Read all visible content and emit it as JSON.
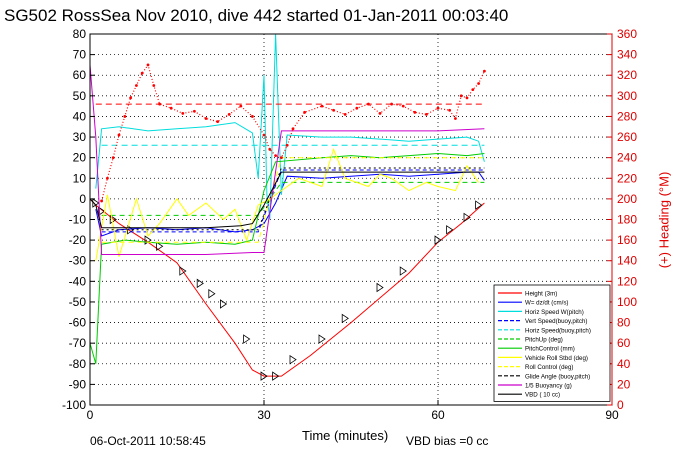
{
  "title": "SG502 RossSea Nov 2010, dive 442 started 01-Jan-2011 00:03:40",
  "xlabel": "Time (minutes)",
  "y2label": "(+) Heading (°M)",
  "timestamp": "06-Oct-2011 10:58:45",
  "vbd_bias": "VBD bias =0 cc",
  "chart_data": {
    "type": "line",
    "xlim": [
      0,
      90
    ],
    "ylim": [
      -100,
      80
    ],
    "y2lim": [
      0,
      360
    ],
    "xticks": [
      0,
      30,
      60,
      90
    ],
    "yticks": [
      -100,
      -90,
      -80,
      -70,
      -60,
      -50,
      -40,
      -30,
      -20,
      -10,
      0,
      10,
      20,
      30,
      40,
      50,
      60,
      70,
      80
    ],
    "y2ticks": [
      0,
      20,
      40,
      60,
      80,
      100,
      120,
      140,
      160,
      180,
      200,
      220,
      240,
      260,
      280,
      300,
      320,
      340,
      360
    ],
    "grid": true,
    "legend_position": "bottom-right",
    "legend": [
      {
        "label": "Height (3m)",
        "color": "#ff0000",
        "style": "solid"
      },
      {
        "label": "W= dz/dt (cm/s)",
        "color": "#0000ff",
        "style": "solid"
      },
      {
        "label": "Horiz Speed W(pitch)",
        "color": "#00dddd",
        "style": "solid"
      },
      {
        "label": "Vert Speed(buoy,pitch)",
        "color": "#0000ff",
        "style": "dashed"
      },
      {
        "label": "Horiz Speed(buoy,pitch)",
        "color": "#00dddd",
        "style": "dashed"
      },
      {
        "label": "PitchUp (deg)",
        "color": "#00cc00",
        "style": "dashed"
      },
      {
        "label": "PitchControl (mm)",
        "color": "#00cc00",
        "style": "solid"
      },
      {
        "label": "Vehicle Roll Stbd (deg)",
        "color": "#ffff00",
        "style": "solid"
      },
      {
        "label": "Roll Control (deg)",
        "color": "#ffff00",
        "style": "dashed"
      },
      {
        "label": "Glide Angle (buoy,pitch)",
        "color": "#000000",
        "style": "dashed"
      },
      {
        "label": "1/5 Buoyancy (g)",
        "color": "#cc00cc",
        "style": "solid"
      },
      {
        "label": "VBD ( 10 cc)",
        "color": "#000000",
        "style": "solid"
      }
    ],
    "series": [
      {
        "name": "Height (3m)",
        "color": "#ff0000",
        "width": 1,
        "dash": "",
        "values": [
          [
            0,
            0
          ],
          [
            1,
            -3
          ],
          [
            5,
            -12
          ],
          [
            10,
            -21
          ],
          [
            15,
            -31
          ],
          [
            20,
            -51
          ],
          [
            25,
            -70
          ],
          [
            28,
            -83
          ],
          [
            30,
            -86
          ],
          [
            33,
            -86
          ],
          [
            38,
            -76
          ],
          [
            45,
            -60
          ],
          [
            55,
            -36
          ],
          [
            60,
            -21
          ],
          [
            64,
            -12
          ],
          [
            68,
            -2
          ]
        ]
      },
      {
        "name": "Depth markers",
        "color": "#000000",
        "marker": true,
        "points": [
          [
            1,
            -2
          ],
          [
            2,
            -6
          ],
          [
            4,
            -10
          ],
          [
            7,
            -15
          ],
          [
            10,
            -20
          ],
          [
            12,
            -23
          ],
          [
            16,
            -35
          ],
          [
            19,
            -41
          ],
          [
            21,
            -46
          ],
          [
            23,
            -51
          ],
          [
            27,
            -68
          ],
          [
            30,
            -86
          ],
          [
            32,
            -86
          ],
          [
            35,
            -78
          ],
          [
            40,
            -68
          ],
          [
            44,
            -58
          ],
          [
            50,
            -43
          ],
          [
            54,
            -35
          ],
          [
            60,
            -20
          ],
          [
            62,
            -15
          ],
          [
            65,
            -9
          ],
          [
            67,
            -3
          ]
        ]
      },
      {
        "name": "W= dz/dt (cm/s)",
        "color": "#0000ff",
        "width": 1,
        "dash": "",
        "values": [
          [
            1,
            -5
          ],
          [
            2,
            -18
          ],
          [
            5,
            -15
          ],
          [
            10,
            -14
          ],
          [
            15,
            -15
          ],
          [
            20,
            -14
          ],
          [
            25,
            -16
          ],
          [
            28,
            -15
          ],
          [
            30,
            -12
          ],
          [
            32,
            -2
          ],
          [
            34,
            11
          ],
          [
            40,
            10
          ],
          [
            45,
            11
          ],
          [
            50,
            12
          ],
          [
            55,
            11
          ],
          [
            60,
            12
          ],
          [
            65,
            13
          ],
          [
            67,
            13
          ],
          [
            68,
            9
          ]
        ]
      },
      {
        "name": "Horiz Speed W(pitch)",
        "color": "#00dddd",
        "width": 1,
        "dash": "",
        "values": [
          [
            1,
            5
          ],
          [
            2,
            34
          ],
          [
            5,
            35
          ],
          [
            10,
            33
          ],
          [
            15,
            34
          ],
          [
            20,
            35
          ],
          [
            25,
            37
          ],
          [
            28,
            32
          ],
          [
            29,
            10
          ],
          [
            30,
            60
          ],
          [
            30.5,
            2
          ],
          [
            31,
            -10
          ],
          [
            32,
            80
          ],
          [
            33,
            2
          ],
          [
            34,
            31
          ],
          [
            40,
            30
          ],
          [
            45,
            30
          ],
          [
            50,
            29
          ],
          [
            55,
            28
          ],
          [
            60,
            29
          ],
          [
            65,
            30
          ],
          [
            67,
            28
          ],
          [
            68,
            18
          ]
        ]
      },
      {
        "name": "Vert Speed(buoy,pitch)",
        "color": "#0000ff",
        "width": 1,
        "dash": "4,3",
        "values": [
          [
            2,
            -16
          ],
          [
            29,
            -16
          ],
          [
            33,
            14
          ],
          [
            68,
            14
          ]
        ]
      },
      {
        "name": "Horiz Speed(buoy,pitch)",
        "color": "#00dddd",
        "width": 1,
        "dash": "6,4",
        "values": [
          [
            2,
            26
          ],
          [
            29,
            26
          ],
          [
            33,
            26
          ],
          [
            68,
            26
          ]
        ]
      },
      {
        "name": "PitchUp (deg)",
        "color": "#00cc00",
        "width": 1,
        "dash": "5,4",
        "values": [
          [
            2,
            -8
          ],
          [
            29,
            -8
          ],
          [
            33,
            8
          ],
          [
            68,
            8
          ]
        ]
      },
      {
        "name": "PitchControl (mm)",
        "color": "#00cc00",
        "width": 1,
        "dash": "",
        "values": [
          [
            0,
            -70
          ],
          [
            1,
            -80
          ],
          [
            2,
            -22
          ],
          [
            6,
            -20
          ],
          [
            10,
            -21
          ],
          [
            15,
            -22
          ],
          [
            20,
            -21
          ],
          [
            25,
            -22
          ],
          [
            28,
            -20
          ],
          [
            30,
            4
          ],
          [
            32,
            18
          ],
          [
            40,
            20
          ],
          [
            45,
            21
          ],
          [
            50,
            20
          ],
          [
            55,
            21
          ],
          [
            60,
            22
          ],
          [
            65,
            21
          ],
          [
            68,
            22
          ]
        ]
      },
      {
        "name": "Vehicle Roll Stbd (deg)",
        "color": "#ffff00",
        "width": 1,
        "dash": "",
        "values": [
          [
            1,
            -30
          ],
          [
            3,
            2
          ],
          [
            5,
            -28
          ],
          [
            8,
            0
          ],
          [
            10,
            -18
          ],
          [
            12,
            -12
          ],
          [
            15,
            0
          ],
          [
            17,
            -8
          ],
          [
            20,
            -2
          ],
          [
            23,
            -10
          ],
          [
            25,
            -5
          ],
          [
            27,
            -20
          ],
          [
            29,
            -3
          ],
          [
            31,
            0
          ],
          [
            34,
            6
          ],
          [
            36,
            10
          ],
          [
            40,
            6
          ],
          [
            42,
            24
          ],
          [
            44,
            10
          ],
          [
            48,
            6
          ],
          [
            50,
            12
          ],
          [
            52,
            10
          ],
          [
            55,
            4
          ],
          [
            58,
            8
          ],
          [
            60,
            6
          ],
          [
            63,
            4
          ],
          [
            65,
            16
          ],
          [
            67,
            8
          ]
        ]
      },
      {
        "name": "Roll Control (deg)",
        "color": "#ffff00",
        "width": 1,
        "dash": "5,4",
        "values": [
          [
            2,
            -21
          ],
          [
            29,
            -21
          ],
          [
            33,
            20
          ],
          [
            68,
            20
          ]
        ]
      },
      {
        "name": "Glide Angle (buoy,pitch)",
        "color": "#000000",
        "width": 1,
        "dash": "2,3",
        "values": [
          [
            2,
            -15
          ],
          [
            29,
            -15
          ],
          [
            33,
            15
          ],
          [
            68,
            15
          ]
        ]
      },
      {
        "name": "1/5 Buoyancy (g)",
        "color": "#cc00cc",
        "width": 1,
        "dash": "",
        "values": [
          [
            0,
            65
          ],
          [
            1,
            30
          ],
          [
            2,
            -27
          ],
          [
            10,
            -27
          ],
          [
            20,
            -27
          ],
          [
            28,
            -26
          ],
          [
            30,
            -26
          ],
          [
            33,
            33
          ],
          [
            40,
            33
          ],
          [
            50,
            33
          ],
          [
            60,
            33
          ],
          [
            68,
            34
          ]
        ]
      },
      {
        "name": "VBD ( 10 cc)",
        "color": "#000000",
        "width": 1,
        "dash": "",
        "values": [
          [
            0,
            0
          ],
          [
            1,
            -3
          ],
          [
            2,
            -14
          ],
          [
            5,
            -14
          ],
          [
            10,
            -14
          ],
          [
            20,
            -14
          ],
          [
            26,
            -13
          ],
          [
            28,
            -12
          ],
          [
            30,
            -3
          ],
          [
            33,
            13
          ],
          [
            40,
            13
          ],
          [
            50,
            13
          ],
          [
            60,
            13
          ],
          [
            68,
            13
          ]
        ]
      },
      {
        "name": "Heading",
        "color": "#ff0000",
        "axis": "y2",
        "marker": "dot",
        "values": [
          [
            2,
            198
          ],
          [
            3,
            220
          ],
          [
            4,
            240
          ],
          [
            5,
            262
          ],
          [
            6,
            280
          ],
          [
            7,
            298
          ],
          [
            8,
            310
          ],
          [
            9,
            322
          ],
          [
            10,
            330
          ],
          [
            11,
            310
          ],
          [
            12,
            292
          ],
          [
            14,
            288
          ],
          [
            16,
            283
          ],
          [
            18,
            285
          ],
          [
            20,
            278
          ],
          [
            22,
            275
          ],
          [
            24,
            282
          ],
          [
            26,
            290
          ],
          [
            28,
            280
          ],
          [
            30,
            262
          ],
          [
            31,
            248
          ],
          [
            32,
            242
          ],
          [
            33,
            240
          ],
          [
            34,
            252
          ],
          [
            35,
            268
          ],
          [
            37,
            284
          ],
          [
            40,
            290
          ],
          [
            42,
            286
          ],
          [
            44,
            282
          ],
          [
            46,
            288
          ],
          [
            48,
            292
          ],
          [
            50,
            283
          ],
          [
            52,
            292
          ],
          [
            54,
            290
          ],
          [
            56,
            284
          ],
          [
            58,
            282
          ],
          [
            60,
            288
          ],
          [
            62,
            286
          ],
          [
            63,
            278
          ],
          [
            64,
            300
          ],
          [
            65,
            298
          ],
          [
            66,
            306
          ],
          [
            67,
            312
          ],
          [
            68,
            324
          ]
        ]
      },
      {
        "name": "Heading mean",
        "color": "#ff0000",
        "axis": "y2",
        "dash": "6,4",
        "width": 1,
        "values": [
          [
            1,
            292
          ],
          [
            68,
            292
          ]
        ]
      }
    ]
  }
}
